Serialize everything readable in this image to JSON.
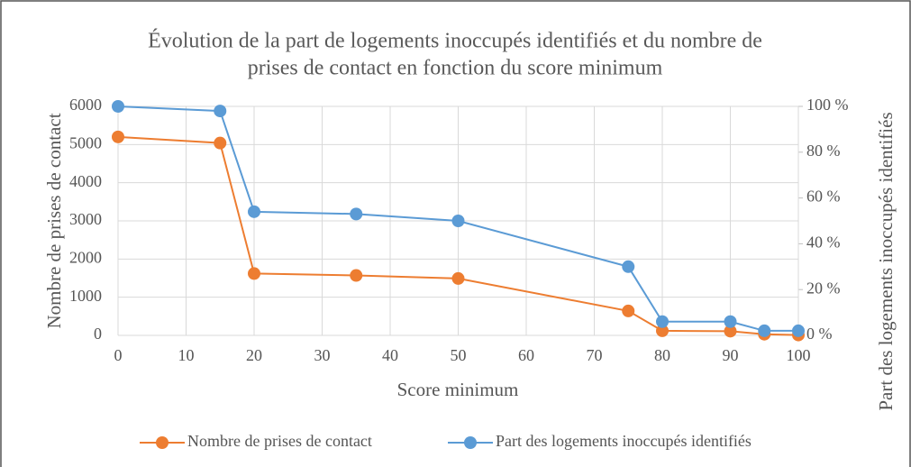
{
  "chart_data": {
    "type": "line",
    "title": [
      "Évolution de la part de logements inoccupés identifiés et du nombre de",
      "prises de contact en fonction du score minimum"
    ],
    "x_label": "Score minimum",
    "y_label": "Nombre de prises de contact",
    "y2_label": "Part des logements inoccupés identifiés",
    "x": [
      0,
      15,
      20,
      35,
      50,
      75,
      80,
      90,
      95,
      100
    ],
    "series": [
      {
        "name": "Nombre de prises de contact",
        "color": "#ED7D31",
        "values": [
          5200,
          5040,
          1620,
          1570,
          1490,
          640,
          120,
          110,
          30,
          10
        ]
      },
      {
        "name": "Part des logements inoccupés identifiés",
        "color": "#5B9BD5",
        "axis": "y2",
        "values": [
          100,
          98,
          54,
          53,
          50,
          30,
          6,
          6,
          2,
          2
        ]
      }
    ],
    "xlim": [
      0,
      100
    ],
    "xticks": [
      0,
      10,
      20,
      30,
      40,
      50,
      60,
      70,
      80,
      90,
      100
    ],
    "ylim": [
      0,
      6000
    ],
    "yticks": [
      0,
      1000,
      2000,
      3000,
      4000,
      5000,
      6000
    ],
    "y2lim": [
      0,
      100
    ],
    "y2ticks": [
      {
        "value": 0,
        "label": "0 %"
      },
      {
        "value": 20,
        "label": "20 %"
      },
      {
        "value": 40,
        "label": "40 %"
      },
      {
        "value": 60,
        "label": "60 %"
      },
      {
        "value": 80,
        "label": "80 %"
      },
      {
        "value": 100,
        "label": "100 %"
      }
    ],
    "grid": true,
    "legend": "bottom"
  }
}
